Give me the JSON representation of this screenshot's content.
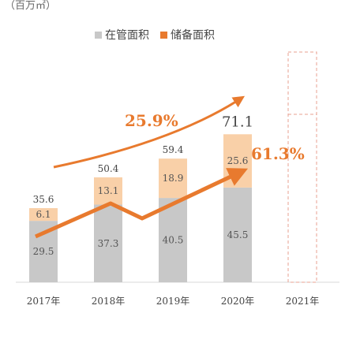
{
  "unit_label": "（百万㎡）",
  "colors": {
    "managed": "#c8c8c8",
    "reserve": "#f9d0a8",
    "accent": "#e87a2e",
    "placeholder": "#e8a090"
  },
  "legend": {
    "managed": "在管面积",
    "reserve": "储备面积"
  },
  "chart_data": {
    "type": "bar",
    "stacked": true,
    "categories": [
      "2017年",
      "2018年",
      "2019年",
      "2020年",
      "2021年"
    ],
    "series": [
      {
        "name": "在管面积",
        "values": [
          29.5,
          37.3,
          40.5,
          45.5,
          null
        ]
      },
      {
        "name": "储备面积",
        "values": [
          6.1,
          13.1,
          18.9,
          25.6,
          null
        ]
      }
    ],
    "totals": [
      "35.6",
      "50.4",
      "59.4",
      "71.1",
      ""
    ],
    "growth_labels": [
      "25.9%",
      "61.3%"
    ],
    "ylim": [
      0,
      100
    ]
  }
}
